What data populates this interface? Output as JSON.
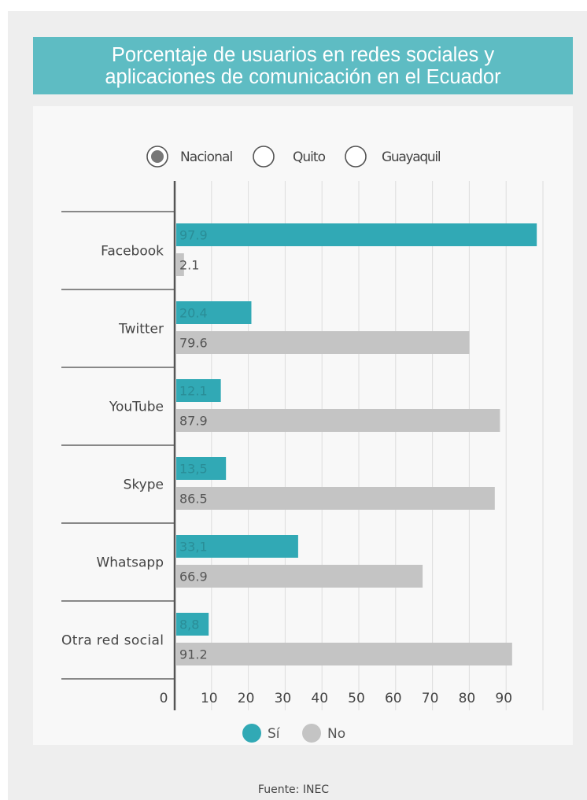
{
  "title": "Porcentaje de usuarios en redes sociales y\naplicaciones de comunicación en el Ecuador",
  "region_filter": {
    "options": [
      "Nacional",
      "Quito",
      "Guayaquil"
    ],
    "selected": "Nacional"
  },
  "source": "Fuente: INEC",
  "colors": {
    "si": "#31a9b5",
    "no": "#c4c4c4",
    "banner": "#5ebcc3",
    "axis": "#555555",
    "grid": "#dddddd"
  },
  "chart_data": {
    "type": "bar",
    "orientation": "horizontal",
    "categories": [
      "Facebook",
      "Twitter",
      "YouTube",
      "Skype",
      "Whatsapp",
      "Otra red social"
    ],
    "series": [
      {
        "name": "Sí",
        "values": [
          97.9,
          20.4,
          12.1,
          13.5,
          33.1,
          8.8
        ],
        "labels": [
          "97.9",
          "20.4",
          "12.1",
          "13,5",
          "33,1",
          "8,8"
        ]
      },
      {
        "name": "No",
        "values": [
          2.1,
          79.6,
          87.9,
          86.5,
          66.9,
          91.2
        ],
        "labels": [
          "2.1",
          "79.6",
          "87.9",
          "86.5",
          "66.9",
          "91.2"
        ]
      }
    ],
    "xticks": [
      "0",
      "10",
      "20",
      "30",
      "40",
      "50",
      "60",
      "70",
      "80",
      "90"
    ],
    "xlim": [
      0,
      100
    ],
    "grid": true,
    "legend_position": "bottom"
  }
}
